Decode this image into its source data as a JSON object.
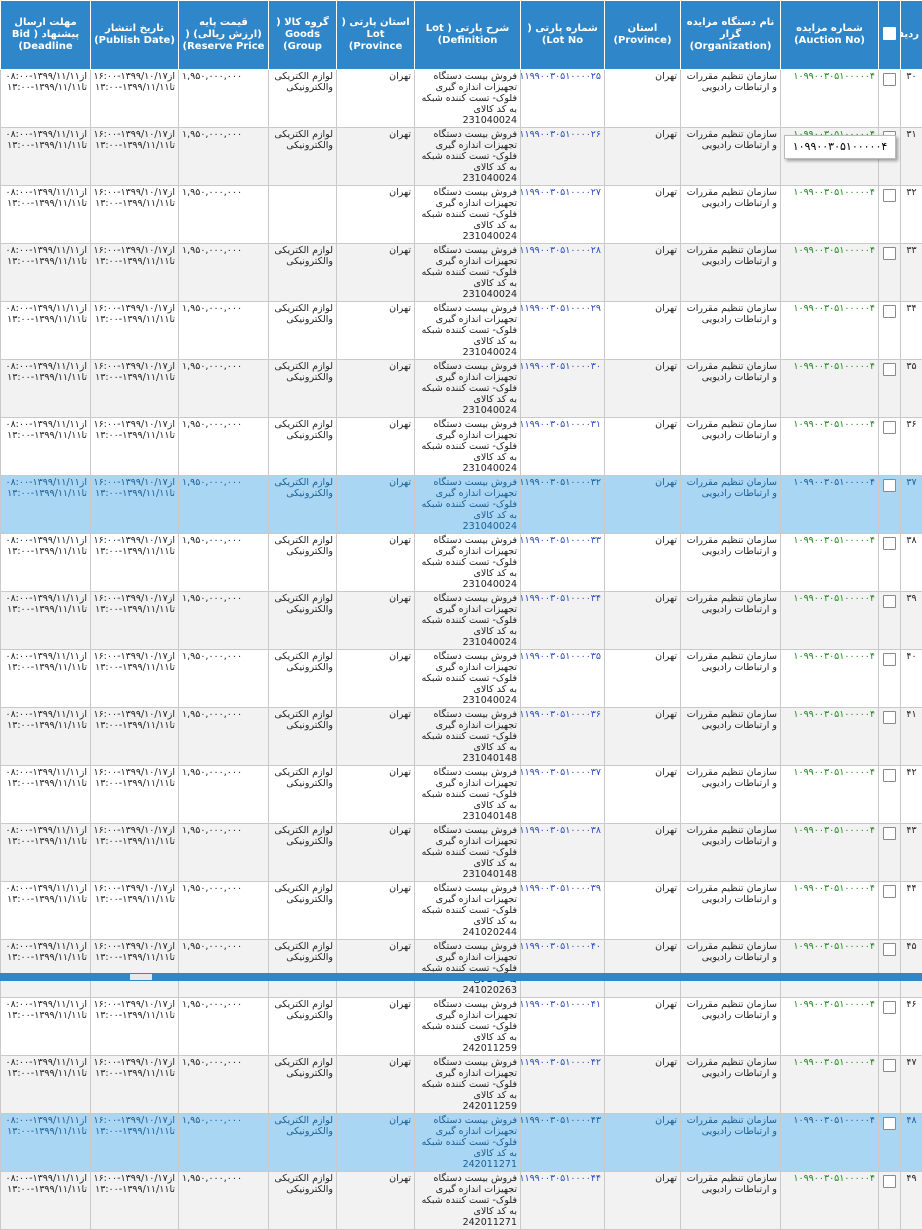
{
  "headers": {
    "idx": "ردیف",
    "auction": "شماره مزایده (Auction No)",
    "org": "نام دستگاه مزایده گزار (Organization)",
    "province": "استان (Province)",
    "lot": "شماره پارتی ( Lot No)",
    "definition": "شرح پارتی ( Lot Definition)",
    "lot_province": "استان پارتی ( Lot Province)",
    "group": "گروه کالا ( Goods Group)",
    "price": "قیمت پایه (ارزش ریالی) ( Reserve Price)",
    "publish": "تاریخ انتشار (Publish Date)",
    "deadline": "مهلت ارسال پیشنهاد ( Bid Deadline)"
  },
  "tooltip": "۱۰۹۹۰۰۳۰۵۱۰۰۰۰۰۴",
  "rows": [
    {
      "idx": "۳۰",
      "auction": "۱۰۹۹۰۰۳۰۵۱۰۰۰۰۰۴",
      "org": "سازمان تنظیم مقررات و ارتباطات رادیویی",
      "province": "تهران",
      "lot": "۱۱۹۹۰۰۳۰۵۱۰۰۰۰۲۵",
      "definition": "فروش بیست دستگاه تجهیزات اندازه گیری فلوک- تست کننده شبکه به کد کالای 231040024",
      "lot_province": "تهران",
      "group": "لوازم الکتریکی والکترونیکی",
      "price": "۱,۹۵۰,۰۰۰,۰۰۰",
      "publish": "از۱۳۹۹/۱۰/۱۷-۱۶:۰۰ تا۱۳۹۹/۱۱/۱۱-۱۳:۰۰",
      "deadline": "از۱۳۹۹/۱۱/۱۱-۰۸:۰۰ تا۱۳۹۹/۱۱/۱۱-۱۳:۰۰",
      "selected": false
    },
    {
      "idx": "۳۱",
      "auction": "۱۰۹۹۰۰۳۰۵۱۰۰۰۰۰۴",
      "org": "سازمان تنظیم مقررات و ارتباطات رادیویی",
      "province": "تهران",
      "lot": "۱۱۹۹۰۰۳۰۵۱۰۰۰۰۲۶",
      "definition": "فروش بیست دستگاه تجهیزات اندازه گیری فلوک- تست کننده شبکه به کد کالای 231040024",
      "lot_province": "تهران",
      "group": "لوازم الکتریکی والکترونیکی",
      "price": "۱,۹۵۰,۰۰۰,۰۰۰",
      "publish": "از۱۳۹۹/۱۰/۱۷-۱۶:۰۰ تا۱۳۹۹/۱۱/۱۱-۱۳:۰۰",
      "deadline": "از۱۳۹۹/۱۱/۱۱-۰۸:۰۰ تا۱۳۹۹/۱۱/۱۱-۱۳:۰۰",
      "selected": false
    },
    {
      "idx": "۳۲",
      "auction": "۱۰۹۹۰۰۳۰۵۱۰۰۰۰۰۴",
      "org": "سازمان تنظیم مقررات و ارتباطات رادیویی",
      "province": "تهران",
      "lot": "۱۱۹۹۰۰۳۰۵۱۰۰۰۰۲۷",
      "definition": "فروش بیست دستگاه تجهیزات اندازه گیری فلوک- تست کننده شبکه به کد کالای 231040024",
      "lot_province": "تهران",
      "group": "",
      "price": "۱,۹۵۰,۰۰۰,۰۰۰",
      "publish": "از۱۳۹۹/۱۰/۱۷-۱۶:۰۰ تا۱۳۹۹/۱۱/۱۱-۱۳:۰۰",
      "deadline": "از۱۳۹۹/۱۱/۱۱-۰۸:۰۰ تا۱۳۹۹/۱۱/۱۱-۱۳:۰۰",
      "selected": false
    },
    {
      "idx": "۳۳",
      "auction": "۱۰۹۹۰۰۳۰۵۱۰۰۰۰۰۴",
      "org": "سازمان تنظیم مقررات و ارتباطات رادیویی",
      "province": "تهران",
      "lot": "۱۱۹۹۰۰۳۰۵۱۰۰۰۰۲۸",
      "definition": "فروش بیست دستگاه تجهیزات اندازه گیری فلوک- تست کننده شبکه به کد کالای 231040024",
      "lot_province": "تهران",
      "group": "لوازم الکتریکی والکترونیکی",
      "price": "۱,۹۵۰,۰۰۰,۰۰۰",
      "publish": "از۱۳۹۹/۱۰/۱۷-۱۶:۰۰ تا۱۳۹۹/۱۱/۱۱-۱۳:۰۰",
      "deadline": "از۱۳۹۹/۱۱/۱۱-۰۸:۰۰ تا۱۳۹۹/۱۱/۱۱-۱۳:۰۰",
      "selected": false
    },
    {
      "idx": "۳۴",
      "auction": "۱۰۹۹۰۰۳۰۵۱۰۰۰۰۰۴",
      "org": "سازمان تنظیم مقررات و ارتباطات رادیویی",
      "province": "تهران",
      "lot": "۱۱۹۹۰۰۳۰۵۱۰۰۰۰۲۹",
      "definition": "فروش بیست دستگاه تجهیزات اندازه گیری فلوک- تست کننده شبکه به کد کالای 231040024",
      "lot_province": "تهران",
      "group": "لوازم الکتریکی والکترونیکی",
      "price": "۱,۹۵۰,۰۰۰,۰۰۰",
      "publish": "از۱۳۹۹/۱۰/۱۷-۱۶:۰۰ تا۱۳۹۹/۱۱/۱۱-۱۳:۰۰",
      "deadline": "از۱۳۹۹/۱۱/۱۱-۰۸:۰۰ تا۱۳۹۹/۱۱/۱۱-۱۳:۰۰",
      "selected": false
    },
    {
      "idx": "۳۵",
      "auction": "۱۰۹۹۰۰۳۰۵۱۰۰۰۰۰۴",
      "org": "سازمان تنظیم مقررات و ارتباطات رادیویی",
      "province": "تهران",
      "lot": "۱۱۹۹۰۰۳۰۵۱۰۰۰۰۳۰",
      "definition": "فروش بیست دستگاه تجهیزات اندازه گیری فلوک- تست کننده شبکه به کد کالای 231040024",
      "lot_province": "تهران",
      "group": "لوازم الکتریکی والکترونیکی",
      "price": "۱,۹۵۰,۰۰۰,۰۰۰",
      "publish": "از۱۳۹۹/۱۰/۱۷-۱۶:۰۰ تا۱۳۹۹/۱۱/۱۱-۱۳:۰۰",
      "deadline": "از۱۳۹۹/۱۱/۱۱-۰۸:۰۰ تا۱۳۹۹/۱۱/۱۱-۱۳:۰۰",
      "selected": false
    },
    {
      "idx": "۳۶",
      "auction": "۱۰۹۹۰۰۳۰۵۱۰۰۰۰۰۴",
      "org": "سازمان تنظیم مقررات و ارتباطات رادیویی",
      "province": "تهران",
      "lot": "۱۱۹۹۰۰۳۰۵۱۰۰۰۰۳۱",
      "definition": "فروش بیست دستگاه تجهیزات اندازه گیری فلوک- تست کننده شبکه به کد کالای 231040024",
      "lot_province": "تهران",
      "group": "لوازم الکتریکی والکترونیکی",
      "price": "۱,۹۵۰,۰۰۰,۰۰۰",
      "publish": "از۱۳۹۹/۱۰/۱۷-۱۶:۰۰ تا۱۳۹۹/۱۱/۱۱-۱۳:۰۰",
      "deadline": "از۱۳۹۹/۱۱/۱۱-۰۸:۰۰ تا۱۳۹۹/۱۱/۱۱-۱۳:۰۰",
      "selected": false
    },
    {
      "idx": "۳۷",
      "auction": "۱۰۹۹۰۰۳۰۵۱۰۰۰۰۰۴",
      "org": "سازمان تنظیم مقررات و ارتباطات رادیویی",
      "province": "تهران",
      "lot": "۱۱۹۹۰۰۳۰۵۱۰۰۰۰۳۲",
      "definition": "فروش بیست دستگاه تجهیزات اندازه گیری فلوک- تست کننده شبکه به کد کالای 231040024",
      "lot_province": "تهران",
      "group": "لوازم الکتریکی والکترونیکی",
      "price": "۱,۹۵۰,۰۰۰,۰۰۰",
      "publish": "از۱۳۹۹/۱۰/۱۷-۱۶:۰۰ تا۱۳۹۹/۱۱/۱۱-۱۳:۰۰",
      "deadline": "از۱۳۹۹/۱۱/۱۱-۰۸:۰۰ تا۱۳۹۹/۱۱/۱۱-۱۳:۰۰",
      "selected": true
    },
    {
      "idx": "۳۸",
      "auction": "۱۰۹۹۰۰۳۰۵۱۰۰۰۰۰۴",
      "org": "سازمان تنظیم مقررات و ارتباطات رادیویی",
      "province": "تهران",
      "lot": "۱۱۹۹۰۰۳۰۵۱۰۰۰۰۳۳",
      "definition": "فروش بیست دستگاه تجهیزات اندازه گیری فلوک- تست کننده شبکه به کد کالای 231040024",
      "lot_province": "تهران",
      "group": "لوازم الکتریکی والکترونیکی",
      "price": "۱,۹۵۰,۰۰۰,۰۰۰",
      "publish": "از۱۳۹۹/۱۰/۱۷-۱۶:۰۰ تا۱۳۹۹/۱۱/۱۱-۱۳:۰۰",
      "deadline": "از۱۳۹۹/۱۱/۱۱-۰۸:۰۰ تا۱۳۹۹/۱۱/۱۱-۱۳:۰۰",
      "selected": false
    },
    {
      "idx": "۳۹",
      "auction": "۱۰۹۹۰۰۳۰۵۱۰۰۰۰۰۴",
      "org": "سازمان تنظیم مقررات و ارتباطات رادیویی",
      "province": "تهران",
      "lot": "۱۱۹۹۰۰۳۰۵۱۰۰۰۰۳۴",
      "definition": "فروش بیست دستگاه تجهیزات اندازه گیری فلوک- تست کننده شبکه به کد کالای 231040024",
      "lot_province": "تهران",
      "group": "لوازم الکتریکی والکترونیکی",
      "price": "۱,۹۵۰,۰۰۰,۰۰۰",
      "publish": "از۱۳۹۹/۱۰/۱۷-۱۶:۰۰ تا۱۳۹۹/۱۱/۱۱-۱۳:۰۰",
      "deadline": "از۱۳۹۹/۱۱/۱۱-۰۸:۰۰ تا۱۳۹۹/۱۱/۱۱-۱۳:۰۰",
      "selected": false
    },
    {
      "idx": "۴۰",
      "auction": "۱۰۹۹۰۰۳۰۵۱۰۰۰۰۰۴",
      "org": "سازمان تنظیم مقررات و ارتباطات رادیویی",
      "province": "تهران",
      "lot": "۱۱۹۹۰۰۳۰۵۱۰۰۰۰۳۵",
      "definition": "فروش بیست دستگاه تجهیزات اندازه گیری فلوک- تست کننده شبکه به کد کالای 231040024",
      "lot_province": "تهران",
      "group": "لوازم الکتریکی والکترونیکی",
      "price": "۱,۹۵۰,۰۰۰,۰۰۰",
      "publish": "از۱۳۹۹/۱۰/۱۷-۱۶:۰۰ تا۱۳۹۹/۱۱/۱۱-۱۳:۰۰",
      "deadline": "از۱۳۹۹/۱۱/۱۱-۰۸:۰۰ تا۱۳۹۹/۱۱/۱۱-۱۳:۰۰",
      "selected": false
    },
    {
      "idx": "۴۱",
      "auction": "۱۰۹۹۰۰۳۰۵۱۰۰۰۰۰۴",
      "org": "سازمان تنظیم مقررات و ارتباطات رادیویی",
      "province": "تهران",
      "lot": "۱۱۹۹۰۰۳۰۵۱۰۰۰۰۳۶",
      "definition": "فروش بیست دستگاه تجهیزات اندازه گیری فلوک- تست کننده شبکه به کد کالای 231040148",
      "lot_province": "تهران",
      "group": "لوازم الکتریکی والکترونیکی",
      "price": "۱,۹۵۰,۰۰۰,۰۰۰",
      "publish": "از۱۳۹۹/۱۰/۱۷-۱۶:۰۰ تا۱۳۹۹/۱۱/۱۱-۱۳:۰۰",
      "deadline": "از۱۳۹۹/۱۱/۱۱-۰۸:۰۰ تا۱۳۹۹/۱۱/۱۱-۱۳:۰۰",
      "selected": false
    },
    {
      "idx": "۴۲",
      "auction": "۱۰۹۹۰۰۳۰۵۱۰۰۰۰۰۴",
      "org": "سازمان تنظیم مقررات و ارتباطات رادیویی",
      "province": "تهران",
      "lot": "۱۱۹۹۰۰۳۰۵۱۰۰۰۰۳۷",
      "definition": "فروش بیست دستگاه تجهیزات اندازه گیری فلوک- تست کننده شبکه به کد کالای 231040148",
      "lot_province": "تهران",
      "group": "لوازم الکتریکی والکترونیکی",
      "price": "۱,۹۵۰,۰۰۰,۰۰۰",
      "publish": "از۱۳۹۹/۱۰/۱۷-۱۶:۰۰ تا۱۳۹۹/۱۱/۱۱-۱۳:۰۰",
      "deadline": "از۱۳۹۹/۱۱/۱۱-۰۸:۰۰ تا۱۳۹۹/۱۱/۱۱-۱۳:۰۰",
      "selected": false
    },
    {
      "idx": "۴۳",
      "auction": "۱۰۹۹۰۰۳۰۵۱۰۰۰۰۰۴",
      "org": "سازمان تنظیم مقررات و ارتباطات رادیویی",
      "province": "تهران",
      "lot": "۱۱۹۹۰۰۳۰۵۱۰۰۰۰۳۸",
      "definition": "فروش بیست دستگاه تجهیزات اندازه گیری فلوک- تست کننده شبکه به کد کالای 231040148",
      "lot_province": "تهران",
      "group": "لوازم الکتریکی والکترونیکی",
      "price": "۱,۹۵۰,۰۰۰,۰۰۰",
      "publish": "از۱۳۹۹/۱۰/۱۷-۱۶:۰۰ تا۱۳۹۹/۱۱/۱۱-۱۳:۰۰",
      "deadline": "از۱۳۹۹/۱۱/۱۱-۰۸:۰۰ تا۱۳۹۹/۱۱/۱۱-۱۳:۰۰",
      "selected": false
    },
    {
      "idx": "۴۴",
      "auction": "۱۰۹۹۰۰۳۰۵۱۰۰۰۰۰۴",
      "org": "سازمان تنظیم مقررات و ارتباطات رادیویی",
      "province": "تهران",
      "lot": "۱۱۹۹۰۰۳۰۵۱۰۰۰۰۳۹",
      "definition": "فروش بیست دستگاه تجهیزات اندازه گیری فلوک- تست کننده شبکه به کد کالای 241020244",
      "lot_province": "تهران",
      "group": "لوازم الکتریکی والکترونیکی",
      "price": "۱,۹۵۰,۰۰۰,۰۰۰",
      "publish": "از۱۳۹۹/۱۰/۱۷-۱۶:۰۰ تا۱۳۹۹/۱۱/۱۱-۱۳:۰۰",
      "deadline": "از۱۳۹۹/۱۱/۱۱-۰۸:۰۰ تا۱۳۹۹/۱۱/۱۱-۱۳:۰۰",
      "selected": false
    },
    {
      "idx": "۴۵",
      "auction": "۱۰۹۹۰۰۳۰۵۱۰۰۰۰۰۴",
      "org": "سازمان تنظیم مقررات و ارتباطات رادیویی",
      "province": "تهران",
      "lot": "۱۱۹۹۰۰۳۰۵۱۰۰۰۰۴۰",
      "definition": "فروش بیست دستگاه تجهیزات اندازه گیری فلوک- تست کننده شبکه به کد کالای 241020263",
      "lot_province": "تهران",
      "group": "لوازم الکتریکی والکترونیکی",
      "price": "۱,۹۵۰,۰۰۰,۰۰۰",
      "publish": "از۱۳۹۹/۱۰/۱۷-۱۶:۰۰ تا۱۳۹۹/۱۱/۱۱-۱۳:۰۰",
      "deadline": "از۱۳۹۹/۱۱/۱۱-۰۸:۰۰ تا۱۳۹۹/۱۱/۱۱-۱۳:۰۰",
      "selected": false
    },
    {
      "idx": "۴۶",
      "auction": "۱۰۹۹۰۰۳۰۵۱۰۰۰۰۰۴",
      "org": "سازمان تنظیم مقررات و ارتباطات رادیویی",
      "province": "تهران",
      "lot": "۱۱۹۹۰۰۳۰۵۱۰۰۰۰۴۱",
      "definition": "فروش بیست دستگاه تجهیزات اندازه گیری فلوک- تست کننده شبکه به کد کالای 242011259",
      "lot_province": "تهران",
      "group": "لوازم الکتریکی والکترونیکی",
      "price": "۱,۹۵۰,۰۰۰,۰۰۰",
      "publish": "از۱۳۹۹/۱۰/۱۷-۱۶:۰۰ تا۱۳۹۹/۱۱/۱۱-۱۳:۰۰",
      "deadline": "از۱۳۹۹/۱۱/۱۱-۰۸:۰۰ تا۱۳۹۹/۱۱/۱۱-۱۳:۰۰",
      "selected": false
    },
    {
      "idx": "۴۷",
      "auction": "۱۰۹۹۰۰۳۰۵۱۰۰۰۰۰۴",
      "org": "سازمان تنظیم مقررات و ارتباطات رادیویی",
      "province": "تهران",
      "lot": "۱۱۹۹۰۰۳۰۵۱۰۰۰۰۴۲",
      "definition": "فروش بیست دستگاه تجهیزات اندازه گیری فلوک- تست کننده شبکه به کد کالای 242011259",
      "lot_province": "تهران",
      "group": "لوازم الکتریکی والکترونیکی",
      "price": "۱,۹۵۰,۰۰۰,۰۰۰",
      "publish": "از۱۳۹۹/۱۰/۱۷-۱۶:۰۰ تا۱۳۹۹/۱۱/۱۱-۱۳:۰۰",
      "deadline": "از۱۳۹۹/۱۱/۱۱-۰۸:۰۰ تا۱۳۹۹/۱۱/۱۱-۱۳:۰۰",
      "selected": false
    },
    {
      "idx": "۴۸",
      "auction": "۱۰۹۹۰۰۳۰۵۱۰۰۰۰۰۴",
      "org": "سازمان تنظیم مقررات و ارتباطات رادیویی",
      "province": "تهران",
      "lot": "۱۱۹۹۰۰۳۰۵۱۰۰۰۰۴۳",
      "definition": "فروش بیست دستگاه تجهیزات اندازه گیری فلوک- تست کننده شبکه به کد کالای 242011271",
      "lot_province": "تهران",
      "group": "لوازم الکتریکی والکترونیکی",
      "price": "۱,۹۵۰,۰۰۰,۰۰۰",
      "publish": "از۱۳۹۹/۱۰/۱۷-۱۶:۰۰ تا۱۳۹۹/۱۱/۱۱-۱۳:۰۰",
      "deadline": "از۱۳۹۹/۱۱/۱۱-۰۸:۰۰ تا۱۳۹۹/۱۱/۱۱-۱۳:۰۰",
      "selected": true
    },
    {
      "idx": "۴۹",
      "auction": "۱۰۹۹۰۰۳۰۵۱۰۰۰۰۰۴",
      "org": "سازمان تنظیم مقررات و ارتباطات رادیویی",
      "province": "تهران",
      "lot": "۱۱۹۹۰۰۳۰۵۱۰۰۰۰۴۴",
      "definition": "فروش بیست دستگاه تجهیزات اندازه گیری فلوک- تست کننده شبکه به کد کالای 242011271",
      "lot_province": "تهران",
      "group": "لوازم الکتریکی والکترونیکی",
      "price": "۱,۹۵۰,۰۰۰,۰۰۰",
      "publish": "از۱۳۹۹/۱۰/۱۷-۱۶:۰۰ تا۱۳۹۹/۱۱/۱۱-۱۳:۰۰",
      "deadline": "از۱۳۹۹/۱۱/۱۱-۰۸:۰۰ تا۱۳۹۹/۱۱/۱۱-۱۳:۰۰",
      "selected": false
    }
  ]
}
